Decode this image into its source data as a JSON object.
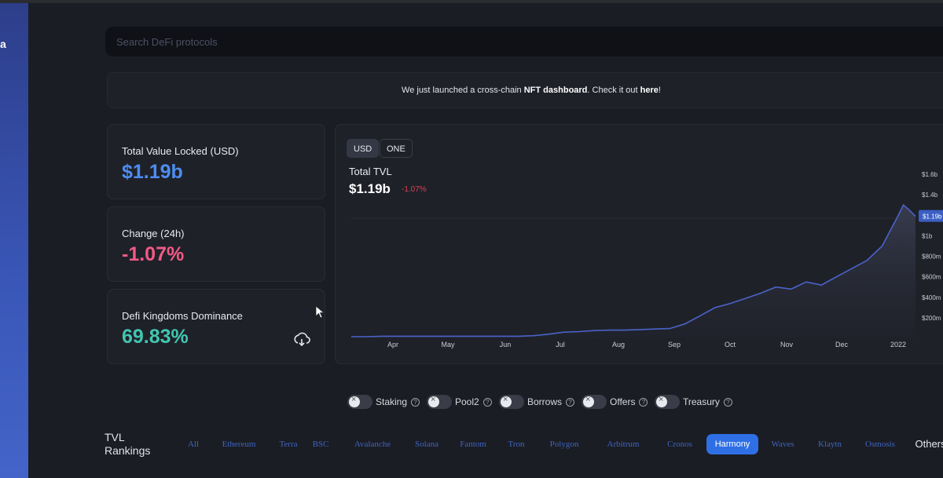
{
  "sidebar": {
    "logo_fragment": "a"
  },
  "search": {
    "placeholder": "Search DeFi protocols"
  },
  "banner": {
    "text_before": "We just launched a cross-chain ",
    "highlight": "NFT dashboard",
    "text_middle": ". Check it out ",
    "link": "here",
    "text_after": "!"
  },
  "stats": [
    {
      "label": "Total Value Locked (USD)",
      "value": "$1.19b"
    },
    {
      "label": "Change (24h)",
      "value": "-1.07%"
    },
    {
      "label": "Defi Kingdoms Dominance",
      "value": "69.83%",
      "icon": "download-icon"
    }
  ],
  "chart": {
    "toggles": [
      "USD",
      "ONE"
    ],
    "active_toggle": "USD",
    "title": "Total TVL",
    "value": "$1.19b",
    "change": "-1.07%"
  },
  "chart_data": {
    "type": "area",
    "title": "Total TVL",
    "x_tick_labels": [
      "Apr",
      "May",
      "Jun",
      "Jul",
      "Aug",
      "Sep",
      "Oct",
      "Nov",
      "Dec",
      "2022"
    ],
    "y_tick_labels": [
      "$1.6b",
      "$1.4b",
      "$1.19b",
      "$1b",
      "$800m",
      "$600m",
      "$400m",
      "$200m"
    ],
    "y_tick_values": [
      1600,
      1400,
      1190,
      1000,
      800,
      600,
      400,
      200
    ],
    "y_unit": "millions USD",
    "ylim": [
      0,
      1700
    ],
    "current_value_label": "$1.19b",
    "series": [
      {
        "x": [
          0,
          0.25,
          0.5,
          0.75,
          1,
          1.25,
          1.5,
          1.75,
          2,
          2.25,
          2.5,
          2.75,
          3,
          3.25,
          3.5,
          3.75,
          4,
          4.25,
          4.5,
          4.75,
          5,
          5.25,
          5.5,
          5.75,
          6,
          6.25,
          6.5,
          6.75,
          7,
          7.25,
          7.5,
          7.75,
          8,
          8.25,
          8.5,
          8.75,
          9,
          9.1,
          9.2,
          9.3
        ],
        "values": [
          15,
          15,
          20,
          20,
          20,
          20,
          20,
          20,
          20,
          20,
          20,
          20,
          25,
          40,
          60,
          65,
          75,
          80,
          80,
          85,
          90,
          95,
          140,
          220,
          300,
          340,
          390,
          440,
          500,
          480,
          550,
          520,
          600,
          680,
          760,
          900,
          1180,
          1300,
          1250,
          1190
        ]
      }
    ],
    "grid": false,
    "legend": "none"
  },
  "filters": [
    {
      "label": "Staking",
      "on": false
    },
    {
      "label": "Pool2",
      "on": false
    },
    {
      "label": "Borrows",
      "on": false
    },
    {
      "label": "Offers",
      "on": false
    },
    {
      "label": "Treasury",
      "on": false
    }
  ],
  "rankings": {
    "title_line1": "TVL",
    "title_line2": "Rankings",
    "chains": [
      "All",
      "Ethereum",
      "Terra",
      "BSC",
      "Avalanche",
      "Solana",
      "Fantom",
      "Tron",
      "Polygon",
      "Arbitrum",
      "Cronos",
      "Harmony",
      "Waves",
      "Klaytn",
      "Osmosis",
      "Others"
    ],
    "active": "Harmony"
  },
  "colors": {
    "accent": "#2f6fe6",
    "tvl_value": "#4d8df0",
    "negative": "#f25a86",
    "dominance": "#42c6b0",
    "chart_line": "#4a63c9"
  }
}
